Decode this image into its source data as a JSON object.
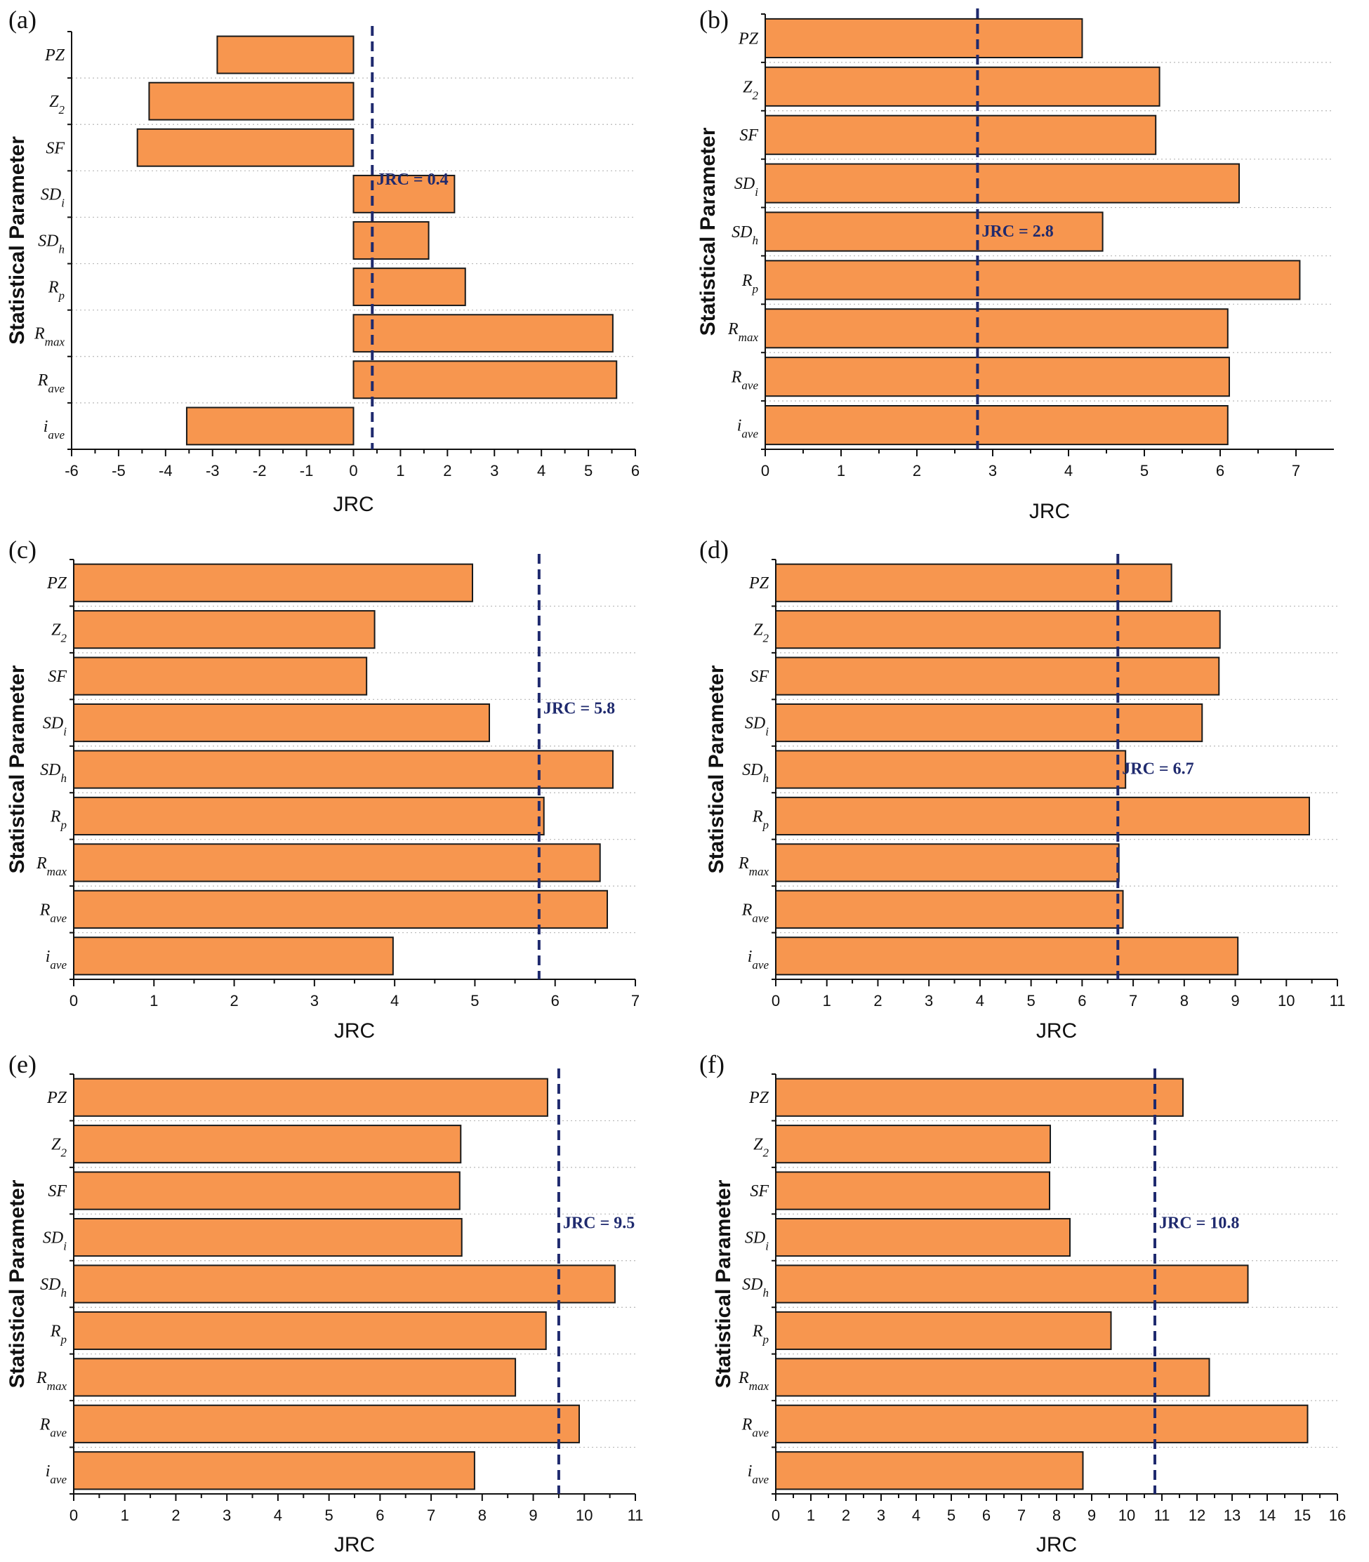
{
  "colors": {
    "bar": "#F7964F",
    "reference_line": "#1F2A6E",
    "grid": "#B8B8B8",
    "axis": "#111111"
  },
  "chart_data": [
    {
      "panel": "(a)",
      "type": "bar",
      "orientation": "horizontal",
      "ylabel": "Statistical Parameter",
      "xlabel": "JRC",
      "categories": [
        "PZ",
        "Z2",
        "SF",
        "SDi",
        "SDh",
        "Rp",
        "Rmax",
        "Rave",
        "iave"
      ],
      "values": [
        -2.9,
        -4.35,
        -4.6,
        2.15,
        1.6,
        2.38,
        5.52,
        5.6,
        -3.55
      ],
      "xlim": [
        -6,
        6
      ],
      "xticks": [
        -6,
        -5,
        -4,
        -3,
        -2,
        -1,
        0,
        1,
        2,
        3,
        4,
        5,
        6
      ],
      "reference": {
        "value": 0.4,
        "label": "JRC = 0.4",
        "label_position": "upper-right"
      },
      "grid": "horizontal dotted"
    },
    {
      "panel": "(b)",
      "type": "bar",
      "orientation": "horizontal",
      "ylabel": "Statistical Parameter",
      "xlabel": "JRC",
      "categories": [
        "PZ",
        "Z2",
        "SF",
        "SDi",
        "SDh",
        "Rp",
        "Rmax",
        "Rave",
        "iave"
      ],
      "values": [
        4.18,
        5.2,
        5.15,
        6.25,
        4.45,
        7.05,
        6.1,
        6.12,
        6.1
      ],
      "xlim": [
        0,
        7.5
      ],
      "xticks": [
        0,
        1,
        2,
        3,
        4,
        5,
        6,
        7
      ],
      "reference": {
        "value": 2.8,
        "label": "JRC = 2.8",
        "label_position": "middle-right"
      },
      "grid": "horizontal dotted"
    },
    {
      "panel": "(c)",
      "type": "bar",
      "orientation": "horizontal",
      "ylabel": "Statistical Parameter",
      "xlabel": "JRC",
      "categories": [
        "PZ",
        "Z2",
        "SF",
        "SDi",
        "SDh",
        "Rp",
        "Rmax",
        "Rave",
        "iave"
      ],
      "values": [
        4.97,
        3.75,
        3.65,
        5.18,
        6.72,
        5.86,
        6.56,
        6.65,
        3.98
      ],
      "xlim": [
        0,
        7
      ],
      "xticks": [
        0,
        1,
        2,
        3,
        4,
        5,
        6,
        7
      ],
      "reference": {
        "value": 5.8,
        "label": "JRC = 5.8",
        "label_position": "upper-right"
      },
      "grid": "horizontal dotted"
    },
    {
      "panel": "(d)",
      "type": "bar",
      "orientation": "horizontal",
      "ylabel": "Statistical Parameter",
      "xlabel": "JRC",
      "categories": [
        "PZ",
        "Z2",
        "SF",
        "SDi",
        "SDh",
        "Rp",
        "Rmax",
        "Rave",
        "iave"
      ],
      "values": [
        7.75,
        8.7,
        8.68,
        8.35,
        6.85,
        10.45,
        6.72,
        6.8,
        9.05
      ],
      "xlim": [
        0,
        11
      ],
      "xticks": [
        0,
        1,
        2,
        3,
        4,
        5,
        6,
        7,
        8,
        9,
        10,
        11
      ],
      "reference": {
        "value": 6.7,
        "label": "JRC = 6.7",
        "label_position": "middle-right"
      },
      "grid": "horizontal dotted"
    },
    {
      "panel": "(e)",
      "type": "bar",
      "orientation": "horizontal",
      "ylabel": "Statistical Parameter",
      "xlabel": "JRC",
      "categories": [
        "PZ",
        "Z2",
        "SF",
        "SDi",
        "SDh",
        "Rp",
        "Rmax",
        "Rave",
        "iave"
      ],
      "values": [
        9.28,
        7.58,
        7.56,
        7.6,
        10.6,
        9.25,
        8.65,
        9.9,
        7.85
      ],
      "xlim": [
        0,
        11
      ],
      "xticks": [
        0,
        1,
        2,
        3,
        4,
        5,
        6,
        7,
        8,
        9,
        10,
        11
      ],
      "reference": {
        "value": 9.5,
        "label": "JRC = 9.5",
        "label_position": "upper-right"
      },
      "grid": "horizontal dotted"
    },
    {
      "panel": "(f)",
      "type": "bar",
      "orientation": "horizontal",
      "ylabel": "Statistical Parameter",
      "xlabel": "JRC",
      "categories": [
        "PZ",
        "Z2",
        "SF",
        "SDi",
        "SDh",
        "Rp",
        "Rmax",
        "Rave",
        "iave"
      ],
      "values": [
        11.6,
        7.82,
        7.8,
        8.38,
        13.45,
        9.55,
        12.35,
        15.15,
        8.75
      ],
      "xlim": [
        0,
        16
      ],
      "xticks": [
        0,
        1,
        2,
        3,
        4,
        5,
        6,
        7,
        8,
        9,
        10,
        11,
        12,
        13,
        14,
        15,
        16
      ],
      "reference": {
        "value": 10.8,
        "label": "JRC = 10.8",
        "label_position": "upper-right"
      },
      "grid": "horizontal dotted"
    }
  ]
}
